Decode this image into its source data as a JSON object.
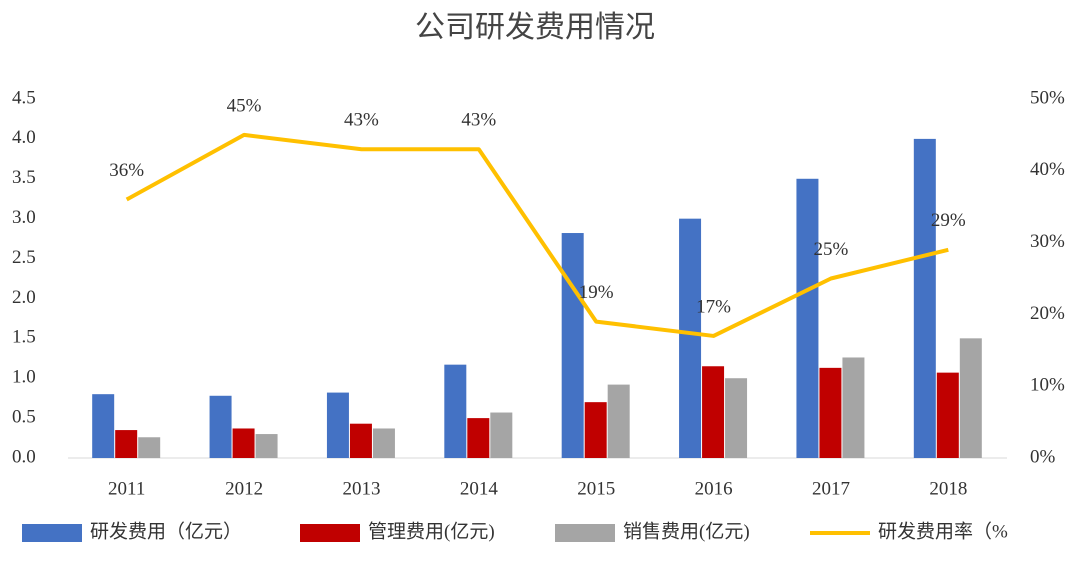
{
  "chart_data": {
    "type": "bar-line",
    "title": "公司研发费用情况",
    "categories": [
      "2011",
      "2012",
      "2013",
      "2014",
      "2015",
      "2016",
      "2017",
      "2018"
    ],
    "series": [
      {
        "name": "研发费用（亿元）",
        "type": "bar",
        "color": "#4472c4",
        "values": [
          0.8,
          0.78,
          0.82,
          1.17,
          2.82,
          3.0,
          3.5,
          4.0
        ]
      },
      {
        "name": "管理费用(亿元)",
        "type": "bar",
        "color": "#c00000",
        "values": [
          0.35,
          0.37,
          0.43,
          0.5,
          0.7,
          1.15,
          1.13,
          1.07
        ]
      },
      {
        "name": "销售费用(亿元)",
        "type": "bar",
        "color": "#a5a5a5",
        "values": [
          0.26,
          0.3,
          0.37,
          0.57,
          0.92,
          1.0,
          1.26,
          1.5
        ]
      },
      {
        "name": "研发费用率（%",
        "type": "line",
        "axis": "y2",
        "color": "#ffc000",
        "values": [
          36,
          45,
          43,
          43,
          19,
          17,
          25,
          29
        ],
        "value_labels": [
          "36%",
          "45%",
          "43%",
          "43%",
          "19%",
          "17%",
          "25%",
          "29%"
        ]
      }
    ],
    "ylim": [
      0,
      4.5
    ],
    "yticks": [
      {
        "value": 0,
        "label": "0.0"
      },
      0.5,
      {
        "value": 1,
        "label": "1.0"
      },
      1.5,
      {
        "value": 2,
        "label": "2.0"
      },
      2.5,
      {
        "value": 3,
        "label": "3.0"
      },
      3.5,
      {
        "value": 4,
        "label": "4.0"
      },
      4.5
    ],
    "y2lim": [
      0,
      50
    ],
    "y2ticks": [
      {
        "value": 0,
        "label": "0%"
      },
      {
        "value": 10,
        "label": "10%"
      },
      {
        "value": 20,
        "label": "20%"
      },
      {
        "value": 30,
        "label": "30%"
      },
      {
        "value": 40,
        "label": "40%"
      },
      {
        "value": 50,
        "label": "50%"
      }
    ],
    "legend": "bottom"
  }
}
